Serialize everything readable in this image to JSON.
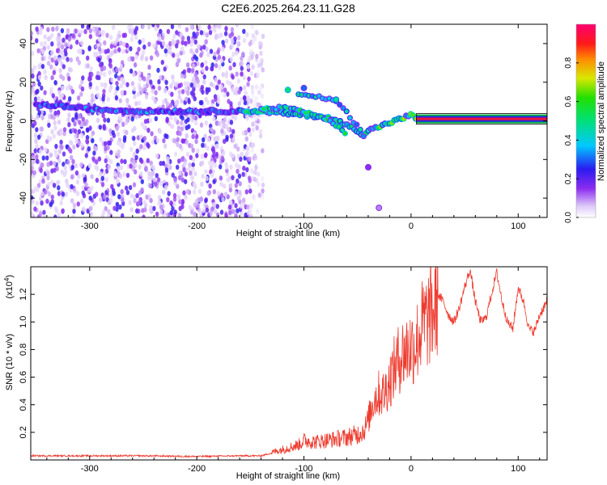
{
  "title": "C2E6.2025.264.23.11.G28",
  "chart_data": [
    {
      "type": "heatmap",
      "name": "spectrogram",
      "xlabel": "Height of straight line (km)",
      "ylabel": "Frequency (Hz)",
      "xlim": [
        -355,
        127
      ],
      "ylim": [
        -50,
        50
      ],
      "xticks": [
        -300,
        -200,
        -100,
        0,
        100
      ],
      "xtick_labels": [
        "-300",
        "-200",
        "-100",
        "0",
        "100"
      ],
      "yticks": [
        -40,
        -20,
        0,
        20,
        40
      ],
      "ytick_labels": [
        "-40",
        "-20",
        "0",
        "20",
        "40"
      ],
      "noise_region_x": [
        -355,
        -150
      ],
      "main_trace": {
        "x": [
          -350,
          -330,
          -300,
          -250,
          -200,
          -160,
          -140,
          -120,
          -100,
          -80,
          -70,
          -60,
          -50,
          -45,
          -40,
          -30,
          -20,
          -10,
          -5,
          0,
          5,
          20,
          60,
          127
        ],
        "y": [
          8,
          8,
          6,
          5,
          5,
          5,
          5,
          4,
          3,
          2,
          0,
          -2,
          -5,
          -7,
          -5,
          -3,
          -1,
          1,
          2,
          3,
          1,
          1,
          1,
          1
        ]
      },
      "branch_trace": {
        "x": [
          -105,
          -90,
          -75,
          -65,
          -60,
          -55,
          -50,
          -45,
          -42
        ],
        "y": [
          13,
          13,
          11,
          8,
          5,
          0,
          -3,
          -7,
          -10
        ]
      },
      "upper_branch": {
        "x": [
          -140,
          -120,
          -100,
          -85,
          -70,
          -60
        ],
        "y": [
          6,
          7,
          5,
          2,
          -2,
          -7
        ]
      },
      "dots": [
        {
          "x": -115,
          "y": 16,
          "amp": 0.5
        },
        {
          "x": -100,
          "y": 17,
          "amp": 0.3
        },
        {
          "x": -70,
          "y": 11,
          "amp": 0.45
        },
        {
          "x": -40,
          "y": -24,
          "amp": 0.15
        },
        {
          "x": -30,
          "y": -45,
          "amp": 0.1
        }
      ],
      "colorbar": {
        "label": "Normalized spectral amplitude",
        "ticks": [
          0.0,
          0.2,
          0.4,
          0.6,
          0.8
        ],
        "tick_labels": [
          "0.0",
          "0.2",
          "0.4",
          "0.6",
          "0.8"
        ],
        "range": [
          0,
          1
        ]
      }
    },
    {
      "type": "line",
      "name": "snr",
      "xlabel": "Height of straight line (km)",
      "ylabel": "SNR (10 * v/v)",
      "scale_label": "(x10",
      "scale_exp": "4",
      "color": "#ee3a2e",
      "xlim": [
        -355,
        127
      ],
      "ylim": [
        0,
        1.4
      ],
      "xticks": [
        -300,
        -200,
        -100,
        0,
        100
      ],
      "xtick_labels": [
        "-300",
        "-200",
        "-100",
        "0",
        "100"
      ],
      "yticks": [
        0.2,
        0.4,
        0.6,
        0.8,
        1.0,
        1.2
      ],
      "ytick_labels": [
        "0.2",
        "0.4",
        "0.6",
        "0.8",
        "1.0",
        "1.2"
      ],
      "series": {
        "name": "SNR",
        "x": [
          -355,
          -300,
          -250,
          -200,
          -160,
          -140,
          -120,
          -105,
          -100,
          -90,
          -80,
          -70,
          -60,
          -50,
          -45,
          -40,
          -35,
          -30,
          -25,
          -20,
          -15,
          -10,
          -5,
          0,
          5,
          10,
          15,
          20,
          25,
          30,
          35,
          40,
          45,
          50,
          55,
          60,
          65,
          70,
          75,
          80,
          85,
          90,
          95,
          100,
          105,
          110,
          115,
          120,
          127
        ],
        "y": [
          0.03,
          0.03,
          0.03,
          0.025,
          0.03,
          0.03,
          0.07,
          0.1,
          0.13,
          0.12,
          0.13,
          0.14,
          0.15,
          0.17,
          0.2,
          0.3,
          0.45,
          0.5,
          0.5,
          0.6,
          0.7,
          0.78,
          0.82,
          0.85,
          0.88,
          1.0,
          1.05,
          1.1,
          1.2,
          1.15,
          1.05,
          1.0,
          1.1,
          1.25,
          1.38,
          1.15,
          1.0,
          1.03,
          1.2,
          1.36,
          1.15,
          1.0,
          0.95,
          1.25,
          1.15,
          0.95,
          0.93,
          1.05,
          1.15
        ]
      }
    }
  ]
}
